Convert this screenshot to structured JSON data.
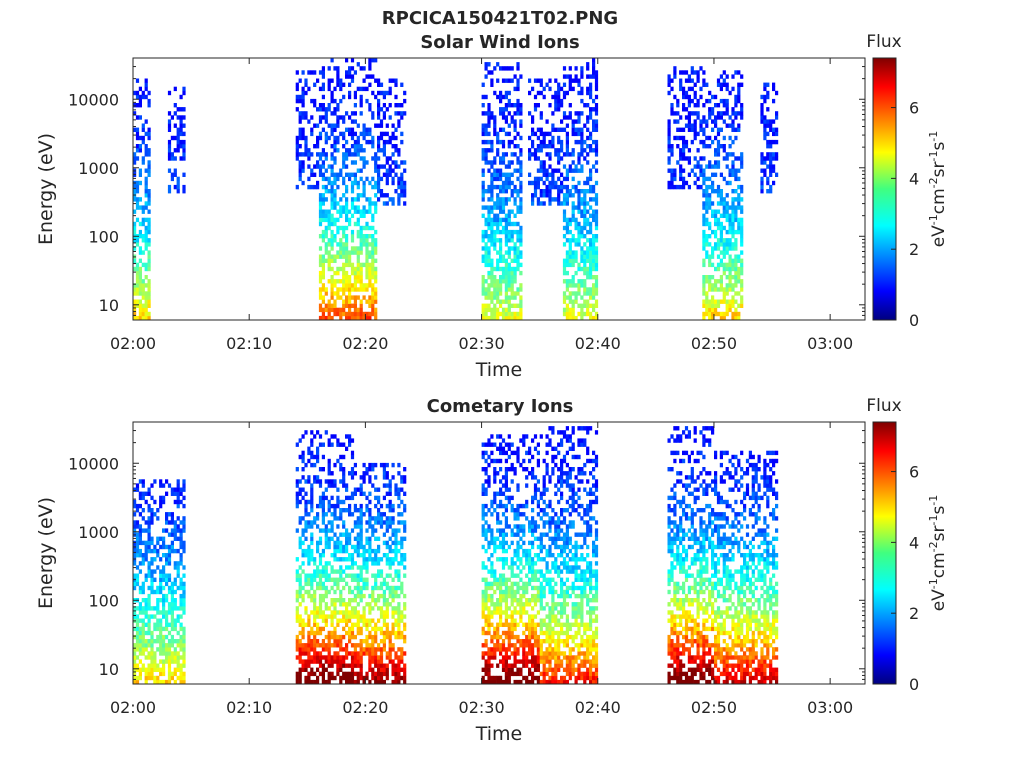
{
  "figure_title": "RPCICA150421T02.PNG",
  "chart_data": [
    {
      "type": "heatmap",
      "title": "Solar Wind Ions",
      "xlabel": "Time",
      "ylabel": "Energy (eV)",
      "x_ticks": [
        "02:00",
        "02:10",
        "02:20",
        "02:30",
        "02:40",
        "02:50",
        "03:00"
      ],
      "xlim_minutes": [
        0,
        63
      ],
      "y_scale": "log",
      "y_ticks": [
        "10",
        "100",
        "1000",
        "10000"
      ],
      "ylim": [
        6,
        40000
      ],
      "colorbar": {
        "title": "Flux",
        "label": "eV-1cm-2sr-1s-1",
        "ticks": [
          "0",
          "2",
          "4",
          "6"
        ],
        "range": [
          0,
          7.4
        ],
        "colormap": "jet"
      },
      "grid": false,
      "bursts": [
        {
          "start": "02:00",
          "end": "02:01:30",
          "e_min": 6,
          "e_max": 20000,
          "peak_flux": 4.0
        },
        {
          "start": "02:03",
          "end": "02:04:30",
          "e_min": 400,
          "e_max": 15000,
          "peak_flux": 1.5
        },
        {
          "start": "02:14",
          "end": "02:16",
          "e_min": 500,
          "e_max": 25000,
          "peak_flux": 1.5
        },
        {
          "start": "02:16",
          "end": "02:21",
          "e_min": 6,
          "e_max": 40000,
          "peak_flux": 5.0
        },
        {
          "start": "02:21",
          "end": "02:23:30",
          "e_min": 300,
          "e_max": 20000,
          "peak_flux": 1.5
        },
        {
          "start": "02:30",
          "end": "02:33:30",
          "e_min": 6,
          "e_max": 35000,
          "peak_flux": 3.5
        },
        {
          "start": "02:34",
          "end": "02:37",
          "e_min": 300,
          "e_max": 20000,
          "peak_flux": 1.5
        },
        {
          "start": "02:37",
          "end": "02:40",
          "e_min": 6,
          "e_max": 40000,
          "peak_flux": 3.5
        },
        {
          "start": "02:46",
          "end": "02:49",
          "e_min": 500,
          "e_max": 30000,
          "peak_flux": 1.5
        },
        {
          "start": "02:49",
          "end": "02:52:30",
          "e_min": 6,
          "e_max": 25000,
          "peak_flux": 4.0
        },
        {
          "start": "02:54",
          "end": "02:55:30",
          "e_min": 400,
          "e_max": 20000,
          "peak_flux": 1.5
        }
      ]
    },
    {
      "type": "heatmap",
      "title": "Cometary Ions",
      "xlabel": "Time",
      "ylabel": "Energy (eV)",
      "x_ticks": [
        "02:00",
        "02:10",
        "02:20",
        "02:30",
        "02:40",
        "02:50",
        "03:00"
      ],
      "xlim_minutes": [
        0,
        63
      ],
      "y_scale": "log",
      "y_ticks": [
        "10",
        "100",
        "1000",
        "10000"
      ],
      "ylim": [
        6,
        40000
      ],
      "colorbar": {
        "title": "Flux",
        "label": "eV-1cm-2sr-1s-1",
        "ticks": [
          "0",
          "2",
          "4",
          "6"
        ],
        "range": [
          0,
          7.4
        ],
        "colormap": "jet"
      },
      "grid": false,
      "bursts": [
        {
          "start": "02:00",
          "end": "02:04:30",
          "e_min": 6,
          "e_max": 6000,
          "peak_flux": 4.0
        },
        {
          "start": "02:14",
          "end": "02:19",
          "e_min": 6,
          "e_max": 30000,
          "peak_flux": 7.0
        },
        {
          "start": "02:19",
          "end": "02:23:30",
          "e_min": 6,
          "e_max": 10000,
          "peak_flux": 6.5
        },
        {
          "start": "02:30",
          "end": "02:35",
          "e_min": 6,
          "e_max": 25000,
          "peak_flux": 7.0
        },
        {
          "start": "02:35",
          "end": "02:40",
          "e_min": 6,
          "e_max": 35000,
          "peak_flux": 5.5
        },
        {
          "start": "02:46",
          "end": "02:50",
          "e_min": 6,
          "e_max": 35000,
          "peak_flux": 7.0
        },
        {
          "start": "02:50",
          "end": "02:55:30",
          "e_min": 6,
          "e_max": 15000,
          "peak_flux": 6.0
        }
      ]
    }
  ]
}
